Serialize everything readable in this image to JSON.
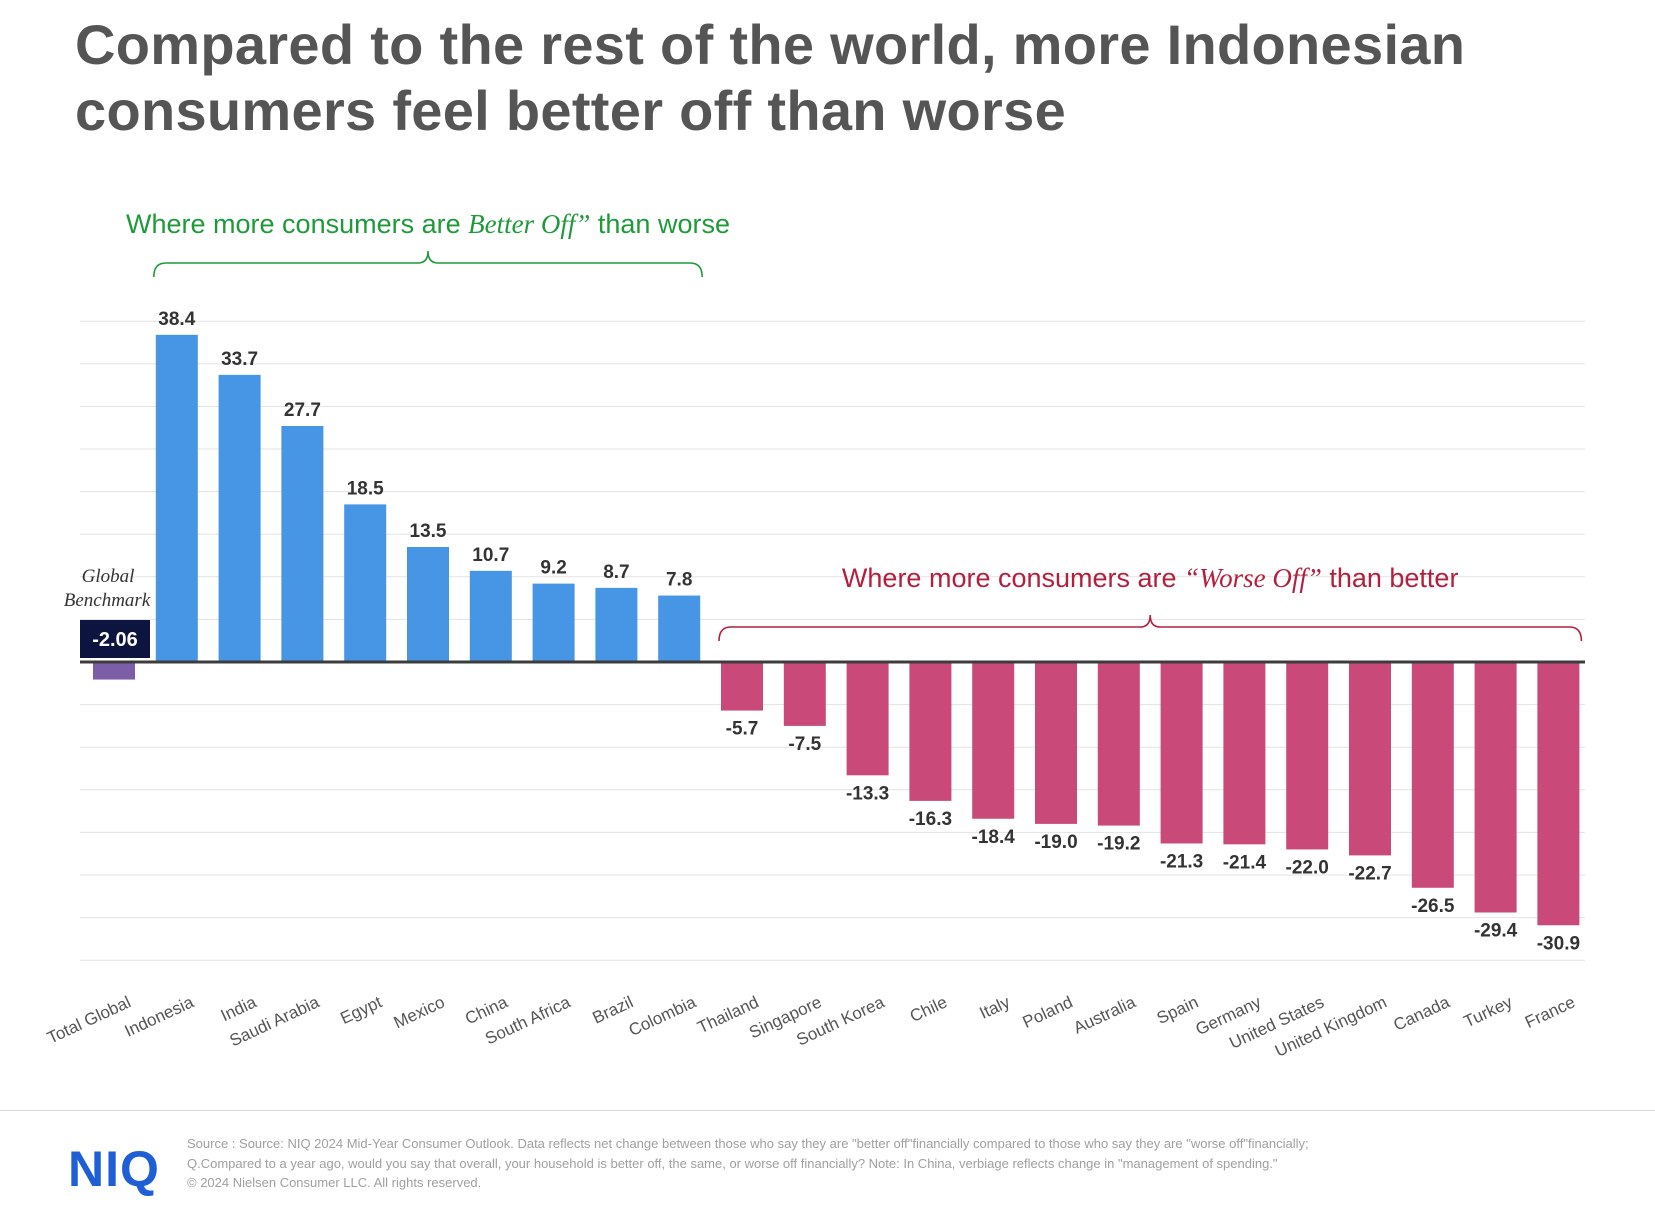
{
  "title": {
    "line1": "Compared to the rest of the world, more Indonesian",
    "line2": "consumers feel better off than worse"
  },
  "colors": {
    "positive": "#4696e5",
    "negative": "#c94a79",
    "benchmark_bar": "#7b5ea7",
    "benchmark_label_bg": "#0d1440",
    "better_off_annotation": "#1f9a3a",
    "worse_off_annotation": "#b3203e",
    "title": "#555555",
    "brand": "#1f5fd6"
  },
  "chart_data": {
    "type": "bar",
    "title": "Compared to the rest of the world, more Indonesian consumers feel better off than worse",
    "xlabel": "",
    "ylabel": "",
    "ylim": [
      -35,
      40
    ],
    "grid": true,
    "categories": [
      "Total Global",
      "Indonesia",
      "India",
      "Saudi Arabia",
      "Egypt",
      "Mexico",
      "China",
      "South Africa",
      "Brazil",
      "Colombia",
      "Thailand",
      "Singapore",
      "South Korea",
      "Chile",
      "Italy",
      "Poland",
      "Australia",
      "Spain",
      "Germany",
      "United States",
      "United Kingdom",
      "Canada",
      "Turkey",
      "France"
    ],
    "values": [
      -2.06,
      38.4,
      33.7,
      27.7,
      18.5,
      13.5,
      10.7,
      9.2,
      8.7,
      7.8,
      -5.7,
      -7.5,
      -13.3,
      -16.3,
      -18.4,
      -19.0,
      -19.2,
      -21.3,
      -21.4,
      -22.0,
      -22.7,
      -26.5,
      -29.4,
      -30.9
    ],
    "data_labels": [
      "-2.06",
      "38.4",
      "33.7",
      "27.7",
      "18.5",
      "13.5",
      "10.7",
      "9.2",
      "8.7",
      "7.8",
      "-5.7",
      "-7.5",
      "-13.3",
      "-16.3",
      "-18.4",
      "-19.0",
      "-19.2",
      "-21.3",
      "-21.4",
      "-22.0",
      "-22.7",
      "-26.5",
      "-29.4",
      "-30.9"
    ],
    "benchmark": {
      "label_line1": "Global",
      "label_line2": "Benchmark",
      "value_label": "-2.06"
    },
    "annotations": [
      {
        "prefix": "Where more consumers are ",
        "emphasis": "Better Off”",
        "suffix": " than worse",
        "from_category": "Indonesia",
        "to_category": "Colombia"
      },
      {
        "prefix": "Where more consumers are ",
        "emphasis": "“Worse Off”",
        "suffix": " than better",
        "from_category": "Thailand",
        "to_category": "France"
      }
    ]
  },
  "footer": {
    "logo": "NIQ",
    "source_line1": "Source : Source: NIQ 2024 Mid-Year Consumer Outlook. Data reflects net change between those who say they are \"better off\"financially compared to those who say they are \"worse off\"financially;",
    "source_line2": "Q.Compared to a year ago, would you say that overall, your household is better off, the same, or worse off financially? Note: In China, verbiage reflects change in \"management of spending.\"",
    "copyright": "© 2024 Nielsen Consumer LLC. All rights reserved."
  }
}
